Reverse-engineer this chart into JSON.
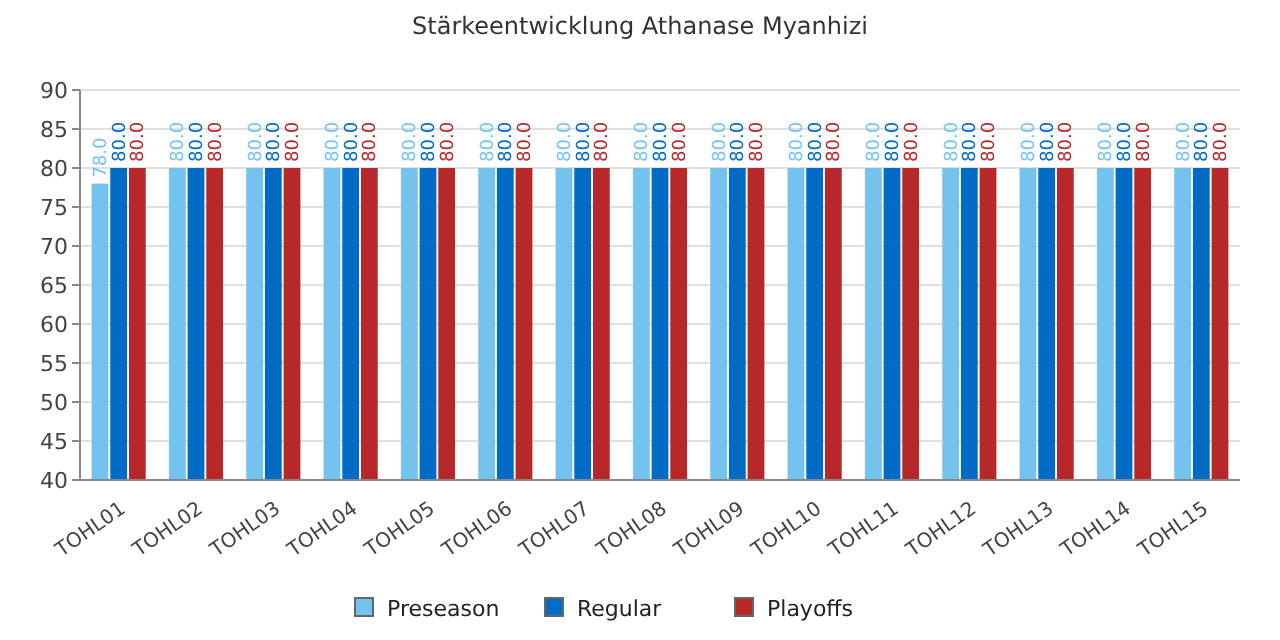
{
  "chart_data": {
    "type": "bar",
    "title": "Stärkeentwicklung Athanase Myanhizi",
    "categories": [
      "TOHL01",
      "TOHL02",
      "TOHL03",
      "TOHL04",
      "TOHL05",
      "TOHL06",
      "TOHL07",
      "TOHL08",
      "TOHL09",
      "TOHL10",
      "TOHL11",
      "TOHL12",
      "TOHL13",
      "TOHL14",
      "TOHL15"
    ],
    "series": [
      {
        "name": "Preseason",
        "color": "#74c3ef",
        "values": [
          78,
          80,
          80,
          80,
          80,
          80,
          80,
          80,
          80,
          80,
          80,
          80,
          80,
          80,
          80
        ]
      },
      {
        "name": "Regular",
        "color": "#006cc6",
        "values": [
          80,
          80,
          80,
          80,
          80,
          80,
          80,
          80,
          80,
          80,
          80,
          80,
          80,
          80,
          80
        ]
      },
      {
        "name": "Playoffs",
        "color": "#b7282b",
        "values": [
          80,
          80,
          80,
          80,
          80,
          80,
          80,
          80,
          80,
          80,
          80,
          80,
          80,
          80,
          80
        ]
      }
    ],
    "ylim": [
      40,
      90
    ],
    "yticks": [
      40,
      45,
      50,
      55,
      60,
      65,
      70,
      75,
      80,
      85,
      90
    ],
    "grid": "y",
    "legend": "bottom",
    "value_labels": [
      [
        "78.0",
        "80.0",
        "80.0",
        "80.0",
        "80.0",
        "80.0",
        "80.0",
        "80.0",
        "80.0",
        "80.0",
        "80.0",
        "80.0",
        "80.0",
        "80.0",
        "80.0"
      ],
      [
        "80.0",
        "80.0",
        "80.0",
        "80.0",
        "80.0",
        "80.0",
        "80.0",
        "80.0",
        "80.0",
        "80.0",
        "80.0",
        "80.0",
        "80.0",
        "80.0",
        "80.0"
      ],
      [
        "80.0",
        "80.0",
        "80.0",
        "80.0",
        "80.0",
        "80.0",
        "80.0",
        "80.0",
        "80.0",
        "80.0",
        "80.0",
        "80.0",
        "80.0",
        "80.0",
        "80.0"
      ]
    ]
  }
}
